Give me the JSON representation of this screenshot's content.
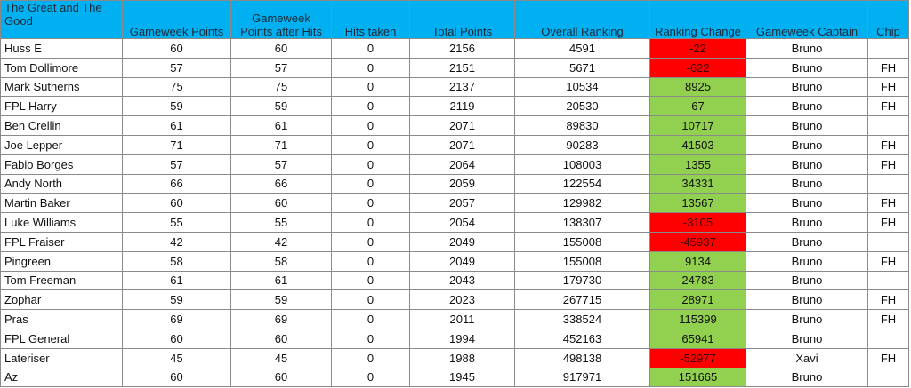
{
  "table": {
    "header": [
      "The Great and The Good",
      "Gameweek Points",
      "Gameweek Points after Hits",
      "Hits taken",
      "Total Points",
      "Overall Ranking",
      "Ranking Change",
      "Gameweek Captain",
      "Chip"
    ],
    "rows": [
      [
        "Huss E",
        60,
        60,
        0,
        2156,
        4591,
        -22,
        "Bruno",
        null
      ],
      [
        "Tom Dollimore",
        57,
        57,
        0,
        2151,
        5671,
        -622,
        "Bruno",
        "FH"
      ],
      [
        "Mark Sutherns",
        75,
        75,
        0,
        2137,
        10534,
        8925,
        "Bruno",
        "FH"
      ],
      [
        "FPL Harry",
        59,
        59,
        0,
        2119,
        20530,
        67,
        "Bruno",
        "FH"
      ],
      [
        "Ben Crellin",
        61,
        61,
        0,
        2071,
        89830,
        10717,
        "Bruno",
        null
      ],
      [
        "Joe Lepper",
        71,
        71,
        0,
        2071,
        90283,
        41503,
        "Bruno",
        "FH"
      ],
      [
        "Fabio Borges",
        57,
        57,
        0,
        2064,
        108003,
        1355,
        "Bruno",
        "FH"
      ],
      [
        "Andy North",
        66,
        66,
        0,
        2059,
        122554,
        34331,
        "Bruno",
        null
      ],
      [
        "Martin Baker",
        60,
        60,
        0,
        2057,
        129982,
        13567,
        "Bruno",
        "FH"
      ],
      [
        "Luke Williams",
        55,
        55,
        0,
        2054,
        138307,
        -3105,
        "Bruno",
        "FH"
      ],
      [
        "FPL Fraiser",
        42,
        42,
        0,
        2049,
        155008,
        -45937,
        "Bruno",
        null
      ],
      [
        "Pingreen",
        58,
        58,
        0,
        2049,
        155008,
        9134,
        "Bruno",
        "FH"
      ],
      [
        "Tom Freeman",
        61,
        61,
        0,
        2043,
        179730,
        24783,
        "Bruno",
        null
      ],
      [
        "Zophar",
        59,
        59,
        0,
        2023,
        267715,
        28971,
        "Bruno",
        "FH"
      ],
      [
        "Pras",
        69,
        69,
        0,
        2011,
        338524,
        115399,
        "Bruno",
        "FH"
      ],
      [
        "FPL General",
        60,
        60,
        0,
        1994,
        452163,
        65941,
        "Bruno",
        null
      ],
      [
        "Lateriser",
        45,
        45,
        0,
        1988,
        498138,
        -52977,
        "Xavi",
        "FH"
      ],
      [
        "Az",
        60,
        60,
        0,
        1945,
        917971,
        151665,
        "Bruno",
        null
      ]
    ]
  }
}
